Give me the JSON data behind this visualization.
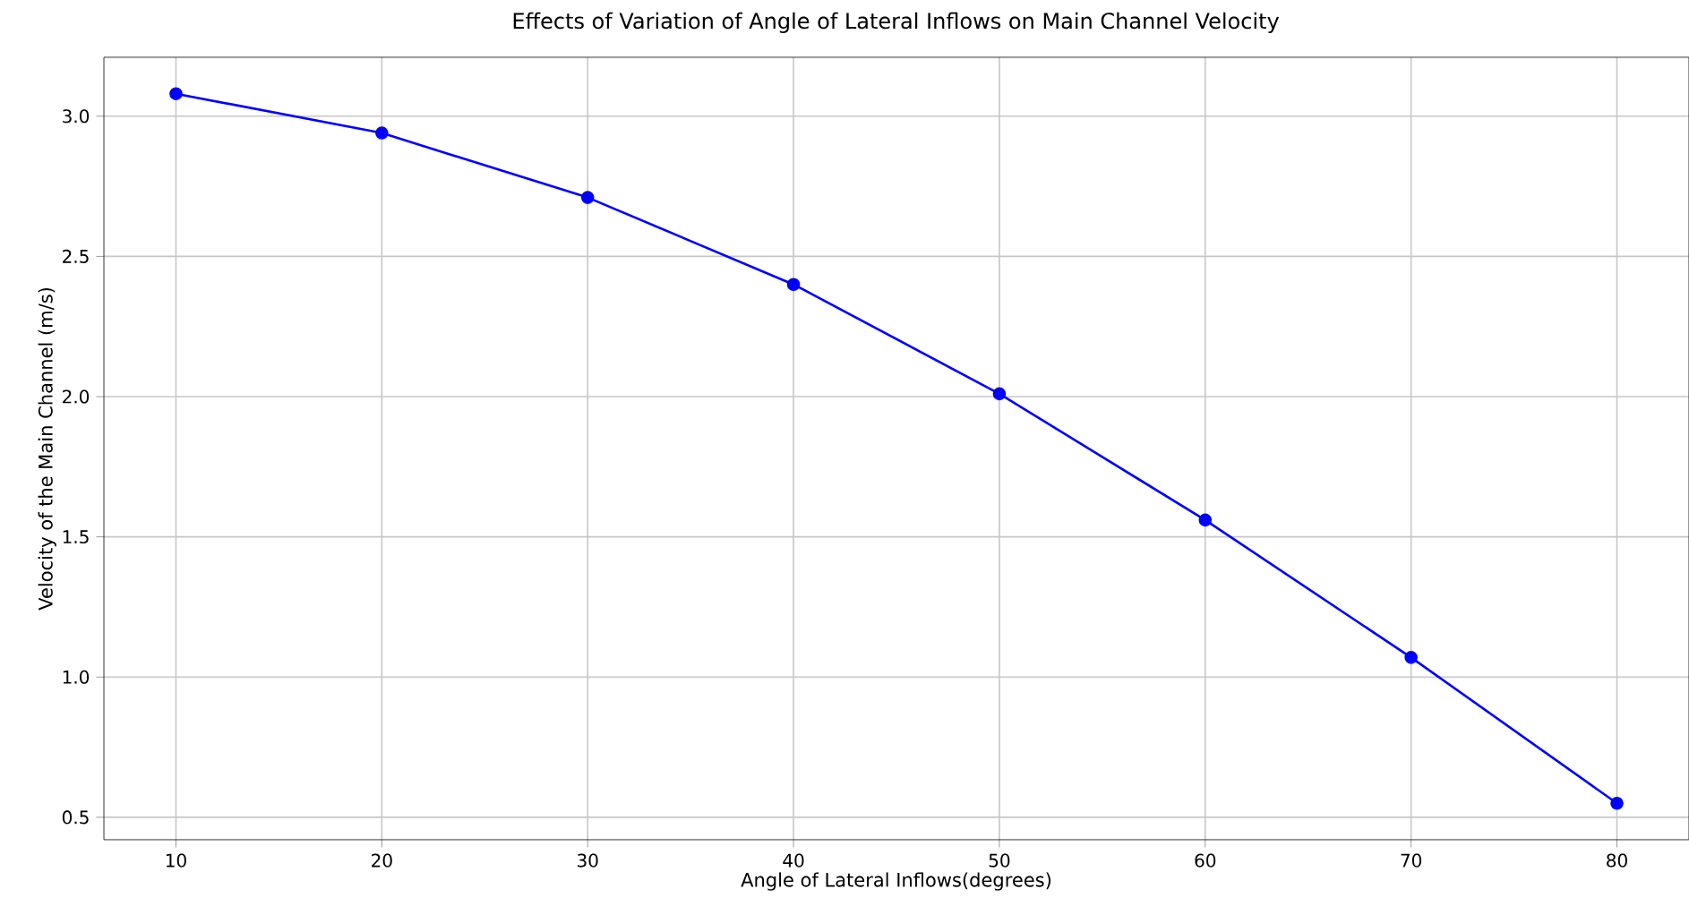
{
  "chart_data": {
    "type": "line",
    "title": "Effects of Variation of Angle of Lateral Inflows on Main Channel Velocity",
    "xlabel": "Angle of Lateral Inflows(degrees)",
    "ylabel": "Velocity of the Main Channel (m/s)",
    "x": [
      10,
      20,
      30,
      40,
      50,
      60,
      70,
      80
    ],
    "series": [
      {
        "color": "#0000ff",
        "values": [
          3.08,
          2.94,
          2.71,
          2.4,
          2.01,
          1.56,
          1.07,
          0.55
        ]
      }
    ],
    "xlim": [
      6.5,
      83.5
    ],
    "ylim": [
      0.42,
      3.21
    ],
    "xticks": [
      10,
      20,
      30,
      40,
      50,
      60,
      70,
      80
    ],
    "yticks": [
      {
        "value": 0.5,
        "label": "0.5"
      },
      {
        "value": 1.0,
        "label": "1.0"
      },
      {
        "value": 1.5,
        "label": "1.5"
      },
      {
        "value": 2.0,
        "label": "2.0"
      },
      {
        "value": 2.5,
        "label": "2.5"
      },
      {
        "value": 3.0,
        "label": "3.0"
      }
    ],
    "grid": true,
    "marker": "circle",
    "line_style": "solid"
  }
}
